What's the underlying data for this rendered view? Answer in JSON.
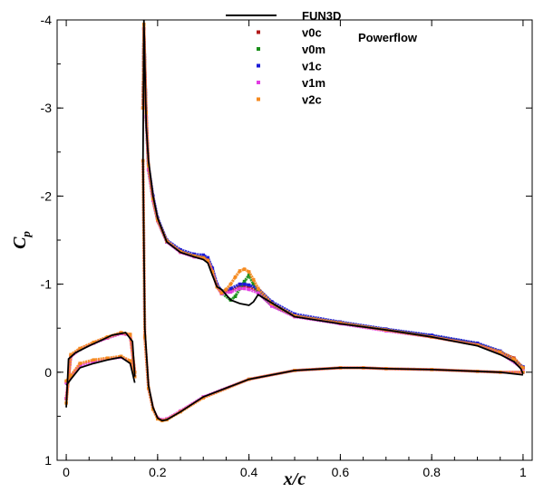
{
  "chart_data": {
    "type": "line",
    "xlabel": "x/c",
    "ylabel_main": "C",
    "ylabel_sub": "p",
    "xlim": [
      -0.02,
      1.02
    ],
    "ylim": [
      1,
      -4
    ],
    "y_inverted": true,
    "grid": false,
    "legend_position": "top-center",
    "legend_annotation": "Powerflow",
    "x_ticks": [
      "0",
      "0.2",
      "0.4",
      "0.6",
      "0.8",
      "1"
    ],
    "x_tick_values": [
      0,
      0.2,
      0.4,
      0.6,
      0.8,
      1
    ],
    "y_ticks": [
      "-4",
      "-3",
      "-2",
      "-1",
      "0",
      "1"
    ],
    "y_tick_values": [
      -4,
      -3,
      -2,
      -1,
      0,
      1
    ],
    "series": [
      {
        "name": "FUN3D",
        "style": "line",
        "color": "#000000",
        "segments": [
          {
            "x": [
              0.0,
              0.005,
              0.02,
              0.05,
              0.08,
              0.1,
              0.13,
              0.145,
              0.15
            ],
            "y": [
              0.4,
              -0.15,
              -0.22,
              -0.3,
              -0.37,
              -0.42,
              -0.45,
              -0.35,
              0.05
            ]
          },
          {
            "x": [
              0.0,
              0.01,
              0.03,
              0.06,
              0.09,
              0.12,
              0.14,
              0.15
            ],
            "y": [
              0.15,
              0.08,
              -0.05,
              -0.1,
              -0.14,
              -0.17,
              -0.1,
              0.12
            ]
          },
          {
            "x": [
              0.168,
              0.17,
              0.172,
              0.175,
              0.18,
              0.19,
              0.2,
              0.22,
              0.25,
              0.28,
              0.3,
              0.31,
              0.32,
              0.33,
              0.34,
              0.36,
              0.38,
              0.4,
              0.41,
              0.42,
              0.5,
              0.6,
              0.7,
              0.8,
              0.9,
              0.95,
              0.98,
              0.995,
              1.0
            ],
            "y": [
              -2.4,
              -4.0,
              -3.5,
              -2.8,
              -2.4,
              -2.0,
              -1.75,
              -1.48,
              -1.36,
              -1.31,
              -1.28,
              -1.24,
              -1.1,
              -0.97,
              -0.94,
              -0.82,
              -0.78,
              -0.76,
              -0.8,
              -0.88,
              -0.63,
              -0.55,
              -0.48,
              -0.4,
              -0.3,
              -0.2,
              -0.12,
              -0.04,
              0.02
            ]
          },
          {
            "x": [
              0.168,
              0.172,
              0.18,
              0.19,
              0.2,
              0.21,
              0.22,
              0.25,
              0.3,
              0.4,
              0.5,
              0.6,
              0.65,
              0.7,
              0.8,
              0.9,
              0.95,
              1.0
            ],
            "y": [
              -2.4,
              -0.5,
              0.15,
              0.4,
              0.52,
              0.55,
              0.54,
              0.45,
              0.28,
              0.08,
              -0.02,
              -0.05,
              -0.05,
              -0.04,
              -0.03,
              -0.01,
              0.0,
              0.03
            ]
          }
        ]
      },
      {
        "name": "v0c",
        "style": "dots",
        "color": "#b21a1a",
        "segments": [
          {
            "x": [
              0.0,
              0.01,
              0.03,
              0.06,
              0.09,
              0.12,
              0.14,
              0.15
            ],
            "y": [
              0.3,
              -0.18,
              -0.26,
              -0.33,
              -0.39,
              -0.44,
              -0.42,
              0.0
            ]
          },
          {
            "x": [
              0.168,
              0.17,
              0.175,
              0.18,
              0.19,
              0.2,
              0.22,
              0.25,
              0.28,
              0.3,
              0.31,
              0.32,
              0.33,
              0.34,
              0.36,
              0.38,
              0.39,
              0.4,
              0.42,
              0.45,
              0.5,
              0.6,
              0.7,
              0.8,
              0.9,
              0.95,
              0.98,
              1.0
            ],
            "y": [
              -3.0,
              -3.9,
              -2.9,
              -2.3,
              -1.95,
              -1.72,
              -1.48,
              -1.37,
              -1.32,
              -1.3,
              -1.28,
              -1.15,
              -0.98,
              -0.9,
              -0.93,
              -0.98,
              -0.98,
              -0.97,
              -0.92,
              -0.76,
              -0.64,
              -0.56,
              -0.48,
              -0.41,
              -0.32,
              -0.23,
              -0.16,
              -0.05
            ]
          }
        ]
      },
      {
        "name": "v0m",
        "style": "dots",
        "color": "#1a8f1a",
        "segments": [
          {
            "x": [
              0.168,
              0.17,
              0.175,
              0.18,
              0.19,
              0.2,
              0.22,
              0.25,
              0.28,
              0.3,
              0.31,
              0.32,
              0.33,
              0.34,
              0.36,
              0.37,
              0.38,
              0.39,
              0.4,
              0.41,
              0.42,
              0.45,
              0.5,
              0.6,
              0.7,
              0.8,
              0.9,
              0.95,
              1.0
            ],
            "y": [
              -3.0,
              -3.9,
              -2.9,
              -2.3,
              -1.95,
              -1.72,
              -1.48,
              -1.37,
              -1.32,
              -1.3,
              -1.28,
              -1.15,
              -0.98,
              -0.9,
              -0.82,
              -0.86,
              -0.95,
              -1.03,
              -1.1,
              -1.0,
              -0.9,
              -0.76,
              -0.64,
              -0.56,
              -0.48,
              -0.41,
              -0.32,
              -0.23,
              -0.05
            ]
          }
        ]
      },
      {
        "name": "v1c",
        "style": "dots",
        "color": "#1a1ad6",
        "segments": [
          {
            "x": [
              0.168,
              0.17,
              0.175,
              0.18,
              0.19,
              0.2,
              0.22,
              0.25,
              0.28,
              0.3,
              0.31,
              0.32,
              0.33,
              0.34,
              0.36,
              0.38,
              0.39,
              0.4,
              0.42,
              0.45,
              0.5,
              0.6,
              0.7,
              0.8,
              0.9,
              0.95,
              1.0
            ],
            "y": [
              -3.0,
              -3.9,
              -2.95,
              -2.35,
              -2.0,
              -1.75,
              -1.5,
              -1.39,
              -1.34,
              -1.33,
              -1.3,
              -1.18,
              -1.0,
              -0.92,
              -0.95,
              -1.0,
              -1.0,
              -0.99,
              -0.95,
              -0.8,
              -0.66,
              -0.57,
              -0.49,
              -0.42,
              -0.33,
              -0.24,
              -0.06
            ]
          }
        ]
      },
      {
        "name": "v1m",
        "style": "dots",
        "color": "#e23ce2",
        "segments": [
          {
            "x": [
              0.0,
              0.01,
              0.03,
              0.06,
              0.09,
              0.12,
              0.14,
              0.15
            ],
            "y": [
              0.3,
              -0.18,
              -0.26,
              -0.33,
              -0.39,
              -0.44,
              -0.42,
              0.0
            ]
          },
          {
            "x": [
              0.0,
              0.01,
              0.03,
              0.06,
              0.09,
              0.12,
              0.14,
              0.15
            ],
            "y": [
              0.12,
              0.05,
              -0.08,
              -0.12,
              -0.15,
              -0.17,
              -0.12,
              0.05
            ]
          },
          {
            "x": [
              0.168,
              0.17,
              0.175,
              0.18,
              0.19,
              0.2,
              0.22,
              0.25,
              0.28,
              0.3,
              0.31,
              0.32,
              0.33,
              0.34,
              0.36,
              0.38,
              0.39,
              0.4,
              0.42,
              0.45,
              0.5,
              0.6,
              0.7,
              0.8,
              0.9,
              0.95,
              1.0
            ],
            "y": [
              -3.0,
              -3.9,
              -2.9,
              -2.3,
              -1.95,
              -1.72,
              -1.48,
              -1.36,
              -1.31,
              -1.29,
              -1.27,
              -1.14,
              -0.97,
              -0.89,
              -0.91,
              -0.95,
              -0.95,
              -0.94,
              -0.9,
              -0.75,
              -0.63,
              -0.55,
              -0.47,
              -0.4,
              -0.31,
              -0.22,
              -0.04
            ]
          },
          {
            "x": [
              0.168,
              0.172,
              0.18,
              0.19,
              0.2,
              0.21,
              0.22,
              0.25,
              0.3,
              0.4,
              0.5,
              0.6,
              0.65,
              0.7,
              0.8,
              0.9,
              0.95,
              1.0
            ],
            "y": [
              -2.4,
              -0.4,
              0.18,
              0.42,
              0.52,
              0.54,
              0.53,
              0.44,
              0.28,
              0.08,
              -0.02,
              -0.05,
              -0.05,
              -0.04,
              -0.03,
              -0.01,
              0.0,
              0.0
            ]
          }
        ]
      },
      {
        "name": "v2c",
        "style": "dots",
        "color": "#f58a1f",
        "segments": [
          {
            "x": [
              0.0,
              0.01,
              0.03,
              0.06,
              0.09,
              0.12,
              0.14,
              0.15
            ],
            "y": [
              0.35,
              -0.2,
              -0.27,
              -0.34,
              -0.4,
              -0.45,
              -0.43,
              0.0
            ]
          },
          {
            "x": [
              0.0,
              0.01,
              0.03,
              0.06,
              0.09,
              0.12,
              0.14,
              0.15
            ],
            "y": [
              0.1,
              0.04,
              -0.1,
              -0.14,
              -0.16,
              -0.18,
              -0.13,
              0.05
            ]
          },
          {
            "x": [
              0.168,
              0.17,
              0.175,
              0.18,
              0.19,
              0.2,
              0.22,
              0.25,
              0.28,
              0.3,
              0.31,
              0.32,
              0.33,
              0.34,
              0.35,
              0.36,
              0.37,
              0.38,
              0.39,
              0.4,
              0.41,
              0.42,
              0.45,
              0.5,
              0.6,
              0.7,
              0.8,
              0.9,
              0.95,
              0.98,
              1.0
            ],
            "y": [
              -3.0,
              -3.95,
              -2.95,
              -2.35,
              -1.97,
              -1.73,
              -1.49,
              -1.37,
              -1.32,
              -1.3,
              -1.27,
              -1.14,
              -0.97,
              -0.9,
              -0.94,
              -1.0,
              -1.08,
              -1.15,
              -1.17,
              -1.14,
              -1.05,
              -0.95,
              -0.78,
              -0.64,
              -0.56,
              -0.48,
              -0.4,
              -0.31,
              -0.23,
              -0.15,
              -0.05
            ]
          },
          {
            "x": [
              0.168,
              0.172,
              0.18,
              0.19,
              0.2,
              0.21,
              0.22,
              0.25,
              0.3,
              0.4,
              0.5,
              0.6,
              0.65,
              0.7,
              0.8,
              0.9,
              0.95,
              1.0
            ],
            "y": [
              -2.4,
              -0.4,
              0.18,
              0.42,
              0.53,
              0.55,
              0.54,
              0.45,
              0.29,
              0.08,
              -0.02,
              -0.05,
              -0.05,
              -0.04,
              -0.03,
              -0.01,
              0.0,
              0.0
            ]
          }
        ]
      }
    ]
  }
}
